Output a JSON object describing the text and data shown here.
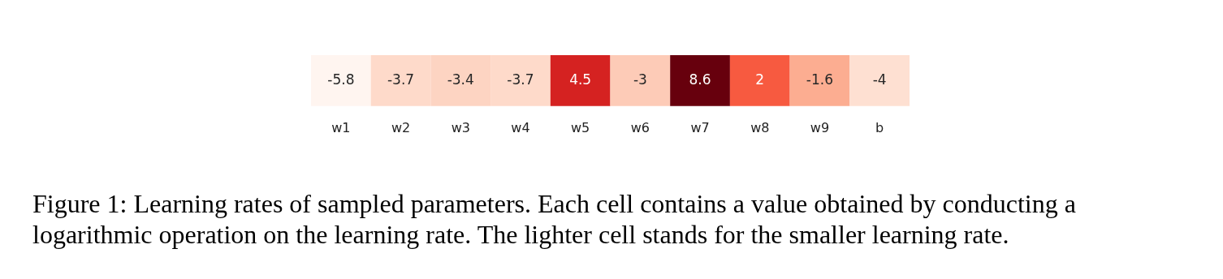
{
  "chart_data": {
    "type": "heatmap",
    "categories": [
      "w1",
      "w2",
      "w3",
      "w4",
      "w5",
      "w6",
      "w7",
      "w8",
      "w9",
      "b"
    ],
    "y_categories": [
      null
    ],
    "cells": [
      [
        -5.8,
        -3.7,
        -3.4,
        -3.7,
        4.5,
        -3,
        8.6,
        2,
        -1.6,
        -4
      ]
    ],
    "data_labels": true,
    "annotations": [
      "Figure 1: Learning rates of sampled parameters. Each cell contains a value obtained by conducting a logarithmic operation on the learning rate. The lighter cell stands for the smaller learning rate."
    ]
  }
}
